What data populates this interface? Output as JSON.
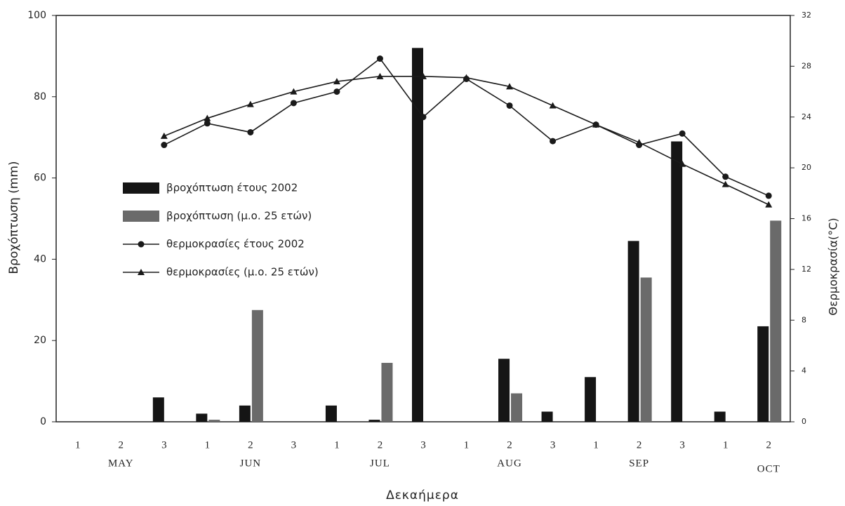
{
  "chart_data": {
    "type": "bar_line",
    "categories": [
      "1",
      "2",
      "3",
      "1",
      "2",
      "3",
      "1",
      "2",
      "3",
      "1",
      "2",
      "3",
      "1",
      "2",
      "3",
      "1",
      "2"
    ],
    "month_labels": [
      "MAY",
      "JUN",
      "JUL",
      "AUG",
      "SEP",
      "OCT"
    ],
    "x_label": "Δεκαήμερα",
    "y_label": "Βροχόπτωση (mm)",
    "y2_label": "Θερμοκρασία(°C)",
    "ylim": [
      0,
      100
    ],
    "yticks": [
      0,
      20,
      40,
      60,
      80,
      100
    ],
    "y2lim": [
      0,
      32
    ],
    "y2ticks": [
      0,
      4,
      8,
      12,
      16,
      20,
      24,
      28,
      32
    ],
    "legend": "left",
    "series": [
      {
        "name": "βροχόπτωση έτους 2002",
        "kind": "bar",
        "color": "#151515",
        "values": [
          0,
          0,
          6,
          2,
          4,
          0,
          4,
          0.5,
          92,
          0,
          15.5,
          2.5,
          11,
          44.5,
          69,
          2.5,
          23.5
        ]
      },
      {
        "name": "βροχόπτωση (μ.ο. 25 ετών)",
        "kind": "bar",
        "color": "#6a6a6a",
        "values": [
          0,
          0,
          0,
          0.5,
          27.5,
          0,
          0,
          14.5,
          0,
          0,
          7,
          0,
          0,
          35.5,
          0,
          0,
          49.5
        ]
      },
      {
        "name": "θερμοκρασίες έτους 2002",
        "kind": "line",
        "marker": "circle",
        "axis": "y2",
        "color": "#1a1a1a",
        "values": [
          null,
          null,
          21.8,
          23.5,
          22.8,
          25.1,
          26.0,
          28.6,
          24.0,
          27.0,
          24.9,
          22.1,
          23.4,
          21.8,
          22.7,
          19.3,
          17.8
        ]
      },
      {
        "name": "θερμοκρασίες (μ.ο. 25 ετών)",
        "kind": "line",
        "marker": "triangle",
        "axis": "y2",
        "color": "#1a1a1a",
        "values": [
          null,
          null,
          22.5,
          23.9,
          25.0,
          26.0,
          26.8,
          27.2,
          27.2,
          27.1,
          26.4,
          24.9,
          23.4,
          22.0,
          20.3,
          18.7,
          17.1
        ]
      }
    ]
  }
}
